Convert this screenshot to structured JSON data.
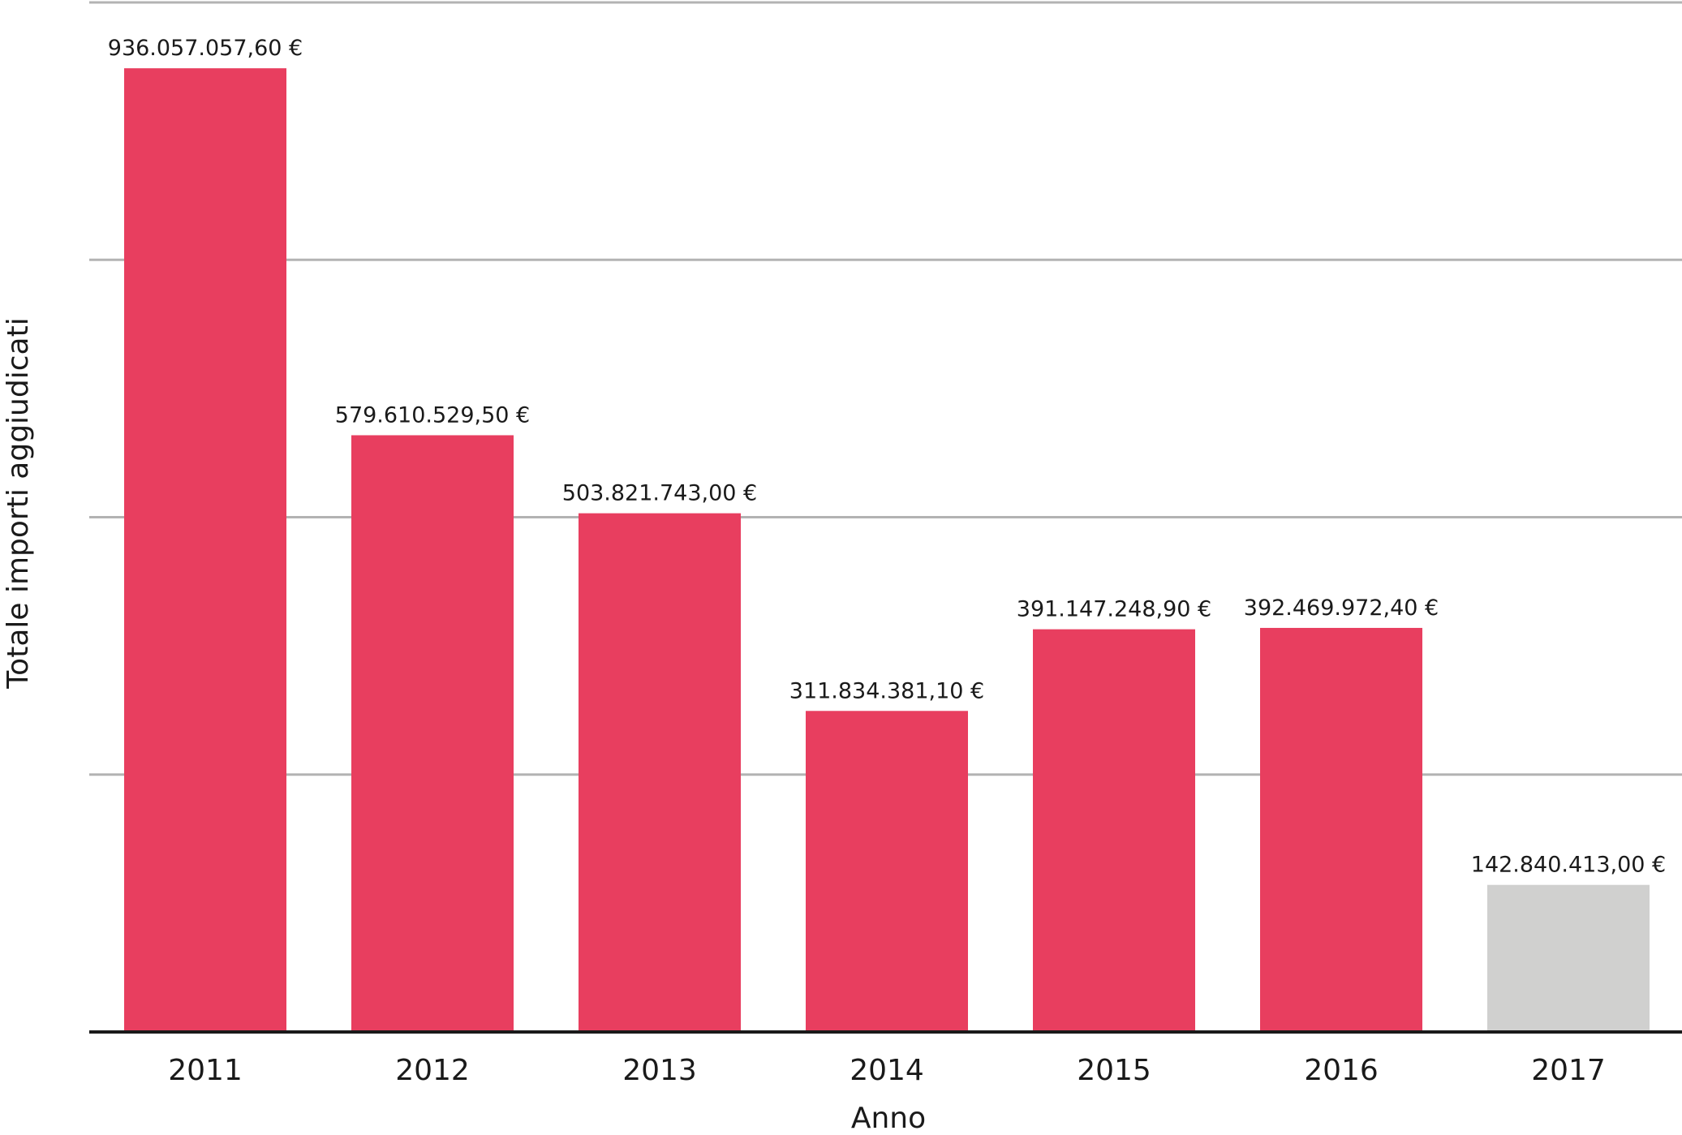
{
  "chart_data": {
    "type": "bar",
    "title": "",
    "xlabel": "Anno",
    "ylabel": "Totale importi aggiudicati",
    "categories": [
      "2011",
      "2012",
      "2013",
      "2014",
      "2015",
      "2016",
      "2017"
    ],
    "values": [
      936057057.6,
      579610529.5,
      503821743.0,
      311834381.1,
      391147248.9,
      392469972.4,
      142840413.0
    ],
    "data_labels": [
      "936.057.057,60 €",
      "579.610.529,50 €",
      "503.821.743,00 €",
      "311.834.381,10 €",
      "391.147.248,90 €",
      "392.469.972,40 €",
      "142.840.413,00 €"
    ],
    "ylim": [
      0,
      1000000000
    ],
    "grid": true,
    "gridline_values": [
      250000000,
      500000000,
      750000000,
      1000000000
    ],
    "y_tick_labels_shown": false,
    "legend": "none",
    "colors": {
      "bar": "#e83e5f",
      "highlight_last": "#d0d0cf",
      "grid": "#b3b3b3",
      "axis": "#1a1a1a",
      "text": "#1a1a1a"
    }
  }
}
